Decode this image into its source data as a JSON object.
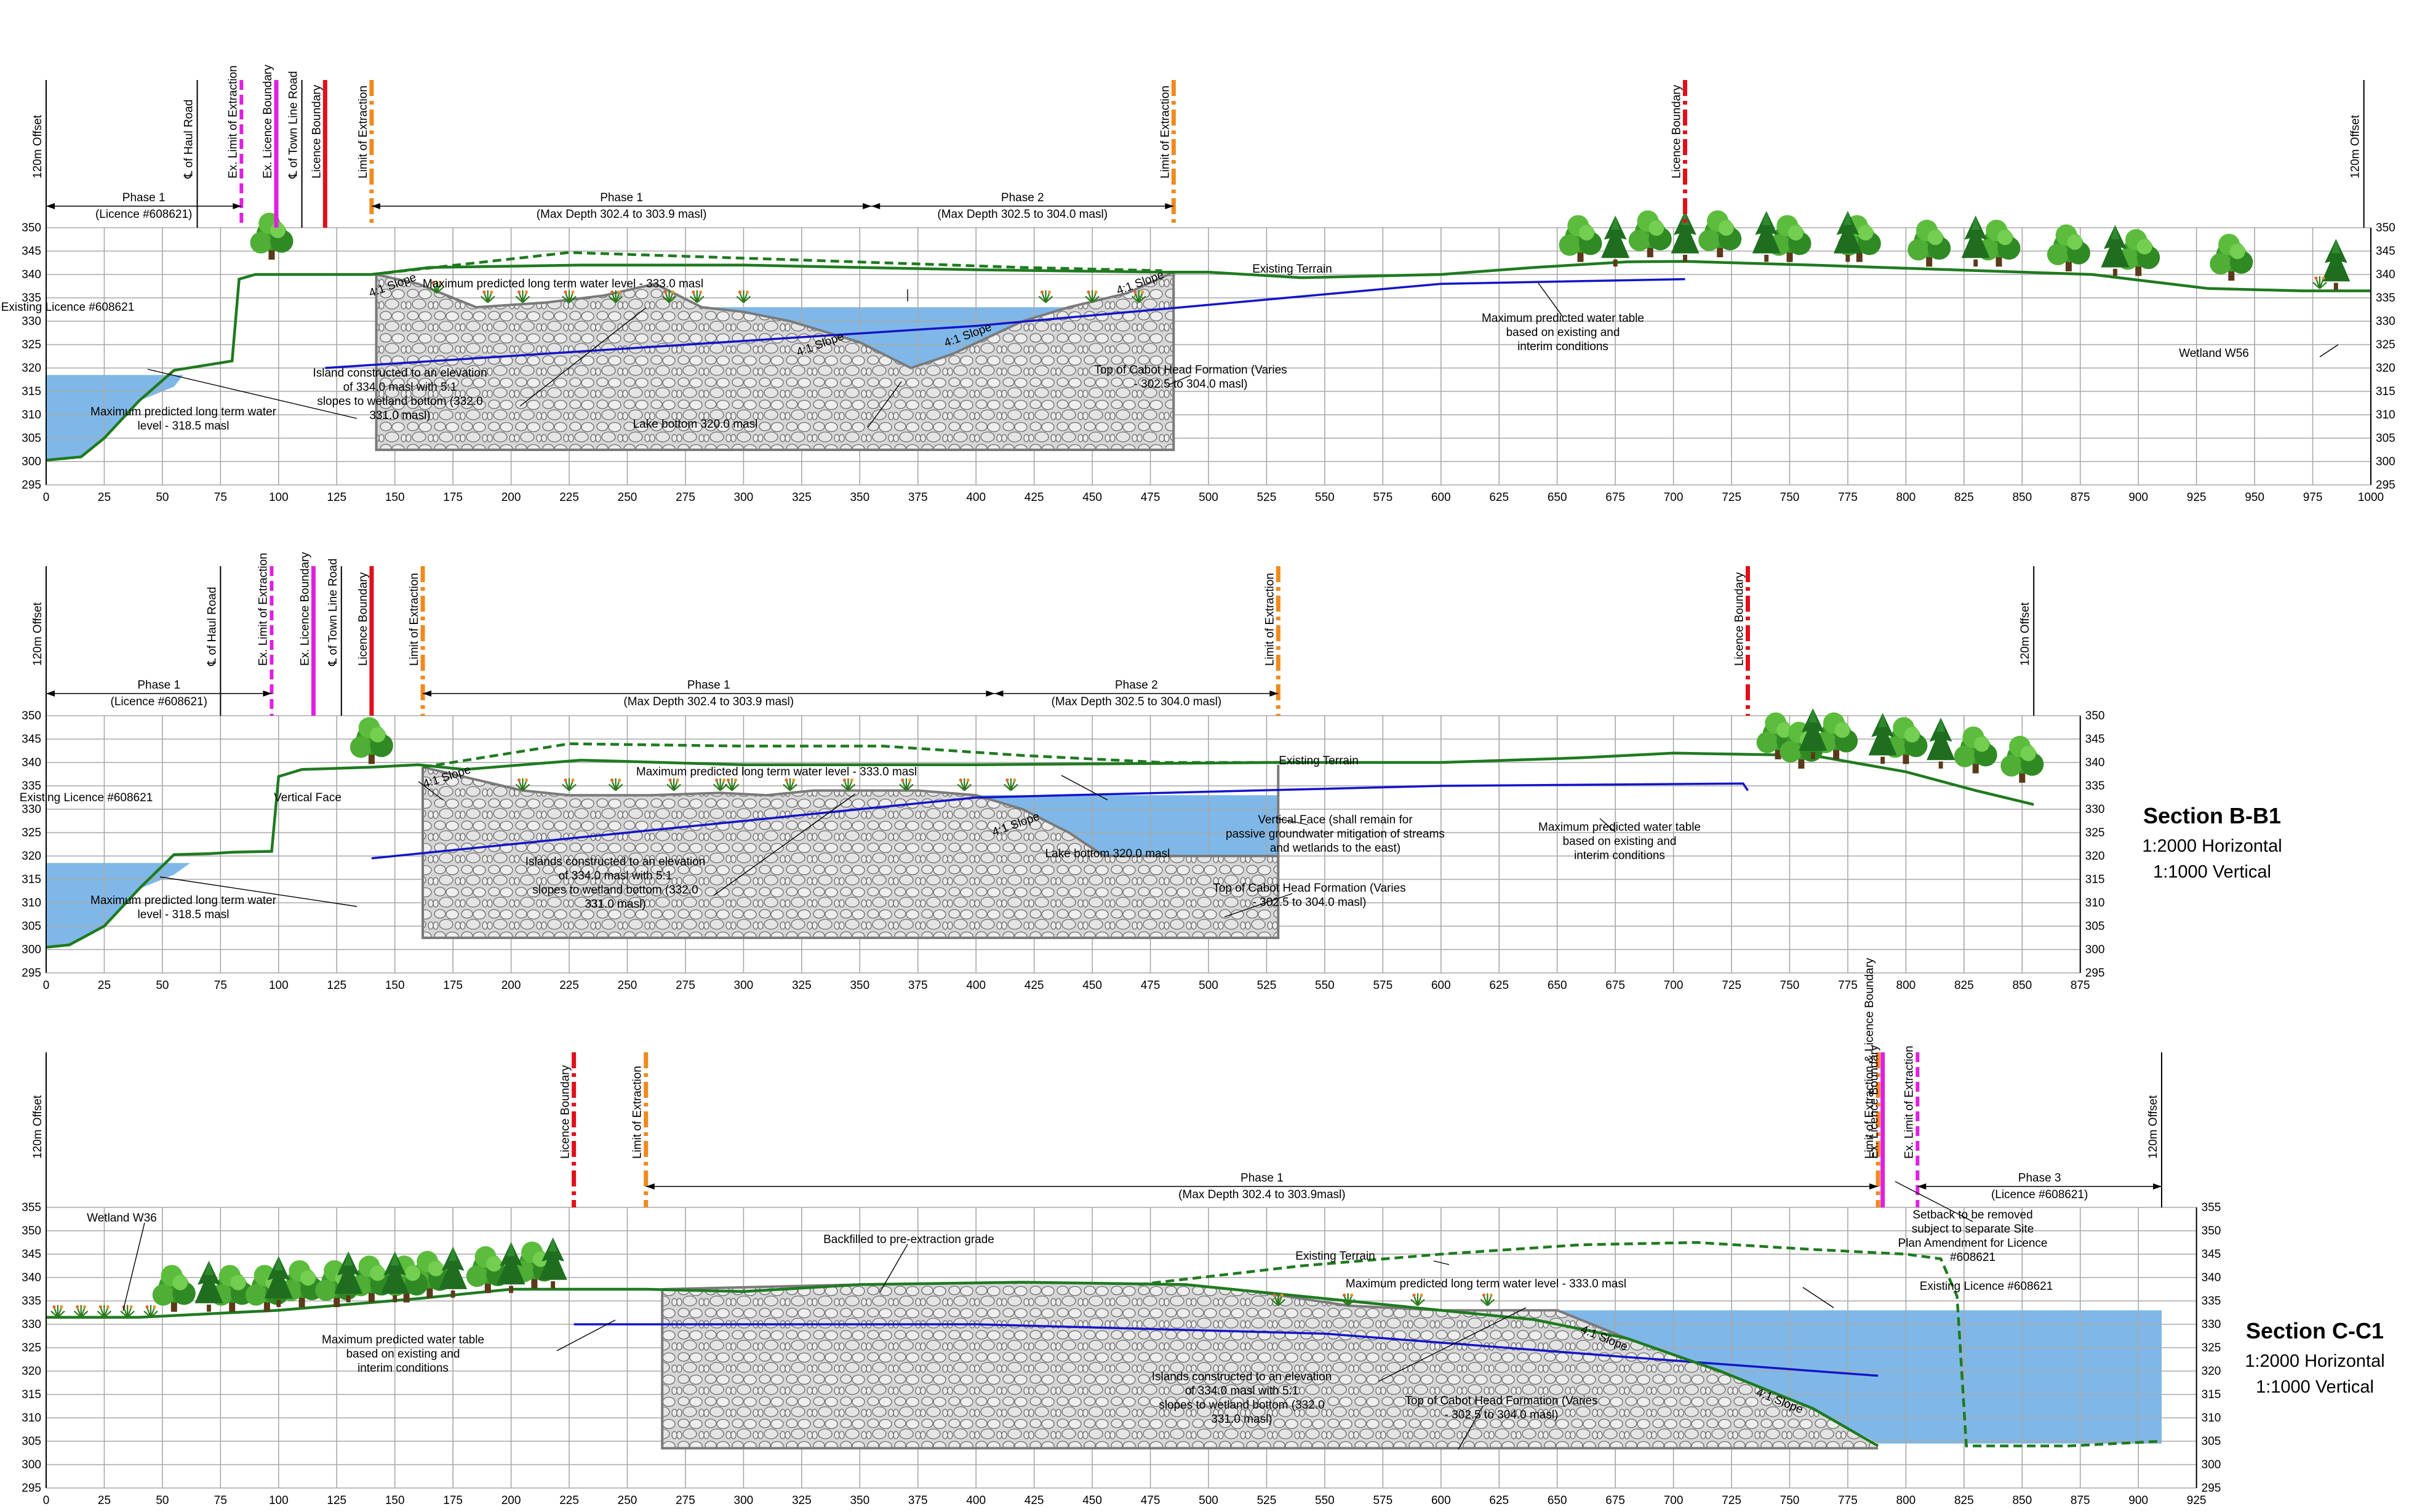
{
  "sections": [
    {
      "id": "A",
      "title": "",
      "scale_h": "",
      "scale_v": "",
      "x_max": 1000,
      "y_min": 295,
      "y_max": 350,
      "x_ticks": [
        0,
        25,
        50,
        75,
        100,
        125,
        150,
        175,
        200,
        225,
        250,
        275,
        300,
        325,
        350,
        375,
        400,
        425,
        450,
        475,
        500,
        525,
        550,
        575,
        600,
        625,
        650,
        675,
        700,
        725,
        750,
        775,
        800,
        825,
        850,
        875,
        900,
        925,
        950,
        975,
        1000
      ],
      "y_ticks": [
        295,
        300,
        305,
        310,
        315,
        320,
        325,
        330,
        335,
        340,
        345,
        350
      ],
      "markers": [
        {
          "label": "120m Offset",
          "x": 0,
          "color": "#000000",
          "style": "thin"
        },
        {
          "label": "℄ of Haul Road",
          "x": 65,
          "color": "#000000",
          "style": "thin"
        },
        {
          "label": "Ex. Limit of Extraction",
          "x": 84,
          "color": "#e020e0",
          "style": "dash"
        },
        {
          "label": "Ex. Licence Boundary",
          "x": 99,
          "color": "#e020e0",
          "style": "solid"
        },
        {
          "label": "℄ of Town Line Road",
          "x": 110,
          "color": "#000000",
          "style": "thin"
        },
        {
          "label": "Licence Boundary",
          "x": 120,
          "color": "#e0101a",
          "style": "solid"
        },
        {
          "label": "Limit of Extraction",
          "x": 140,
          "color": "#f08a1c",
          "style": "dashdot"
        },
        {
          "label": "Limit of Extraction",
          "x": 485,
          "color": "#f08a1c",
          "style": "dashdot"
        },
        {
          "label": "Licence Boundary",
          "x": 705,
          "color": "#e0101a",
          "style": "dashdot"
        },
        {
          "label": "120m Offset",
          "x": 997,
          "color": "#000000",
          "style": "thin"
        }
      ],
      "phases": [
        {
          "name": "Phase 1",
          "detail": "(Licence #608621)",
          "x1": 0,
          "x2": 84
        },
        {
          "name": "Phase 1",
          "detail": "(Max Depth 302.4 to 303.9 masl)",
          "x1": 140,
          "x2": 355
        },
        {
          "name": "Phase 2",
          "detail": "(Max Depth 302.5 to 304.0 masl)",
          "x1": 355,
          "x2": 485
        }
      ],
      "notes": [
        {
          "text": "Existing Licence #608621"
        },
        {
          "text": "Maximum predicted long term water level - 333.0 masl"
        },
        {
          "text": "4:1 Slope"
        },
        {
          "text": "4:1 Slope"
        },
        {
          "text": "4:1 Slope"
        },
        {
          "text": "4:1 Slope"
        },
        {
          "text": "Existing Terrain"
        },
        {
          "text": "Maximum predicted water table based on existing and interim conditions"
        },
        {
          "text": "Top of Cabot Head Formation (Varies - 302.5 to 304.0 masl)"
        },
        {
          "text": "Island constructed to an elevation of 334.0 masl with 5:1 slopes to wetland bottom (332.0 331.0 masl)"
        },
        {
          "text": "Lake bottom 320.0 masl"
        },
        {
          "text": "Maximum predicted long term water level - 318.5 masl"
        },
        {
          "text": "Wetland W56"
        }
      ]
    },
    {
      "id": "B",
      "title": "Section B-B1",
      "scale_h": "1:2000 Horizontal",
      "scale_v": "1:1000 Vertical",
      "x_max": 875,
      "y_min": 295,
      "y_max": 350,
      "x_ticks": [
        0,
        25,
        50,
        75,
        100,
        125,
        150,
        175,
        200,
        225,
        250,
        275,
        300,
        325,
        350,
        375,
        400,
        425,
        450,
        475,
        500,
        525,
        550,
        575,
        600,
        625,
        650,
        675,
        700,
        725,
        750,
        775,
        800,
        825,
        850,
        875
      ],
      "y_ticks": [
        295,
        300,
        305,
        310,
        315,
        320,
        325,
        330,
        335,
        340,
        345,
        350
      ],
      "markers": [
        {
          "label": "120m Offset",
          "x": 0,
          "color": "#000000",
          "style": "thin"
        },
        {
          "label": "℄ of Haul Road",
          "x": 75,
          "color": "#000000",
          "style": "thin"
        },
        {
          "label": "Ex. Limit of Extraction",
          "x": 97,
          "color": "#e020e0",
          "style": "dash"
        },
        {
          "label": "Ex. Licence Boundary",
          "x": 115,
          "color": "#e020e0",
          "style": "solid"
        },
        {
          "label": "℄ of Town Line Road",
          "x": 127,
          "color": "#000000",
          "style": "thin"
        },
        {
          "label": "Licence Boundary",
          "x": 140,
          "color": "#e0101a",
          "style": "solid"
        },
        {
          "label": "Limit of Extraction",
          "x": 162,
          "color": "#f08a1c",
          "style": "dashdot"
        },
        {
          "label": "Limit of Extraction",
          "x": 530,
          "color": "#f08a1c",
          "style": "dashdot"
        },
        {
          "label": "Licence Boundary",
          "x": 732,
          "color": "#e0101a",
          "style": "dashdot"
        },
        {
          "label": "120m Offset",
          "x": 855,
          "color": "#000000",
          "style": "thin"
        }
      ],
      "phases": [
        {
          "name": "Phase 1",
          "detail": "(Licence #608621)",
          "x1": 0,
          "x2": 97
        },
        {
          "name": "Phase 1",
          "detail": "(Max Depth 302.4 to 303.9 masl)",
          "x1": 162,
          "x2": 408
        },
        {
          "name": "Phase 2",
          "detail": "(Max Depth 302.5 to 304.0 masl)",
          "x1": 408,
          "x2": 530
        }
      ],
      "notes": [
        {
          "text": "Existing Licence #608621"
        },
        {
          "text": "Vertical Face"
        },
        {
          "text": "4:1 Slope"
        },
        {
          "text": "Maximum predicted long term water level - 333.0 masl"
        },
        {
          "text": "4:1 Slope"
        },
        {
          "text": "Existing Terrain"
        },
        {
          "text": "Lake bottom 320.0 masl"
        },
        {
          "text": "Vertical Face (shall remain for passive groundwater mitigation of streams and wetlands to the east)"
        },
        {
          "text": "Maximum predicted water table based on existing and interim conditions"
        },
        {
          "text": "Top of Cabot Head Formation (Varies - 302.5 to 304.0 masl)"
        },
        {
          "text": "Islands constructed to an elevation of 334.0 masl with 5:1 slopes to wetland bottom (332.0 331.0 masl)"
        },
        {
          "text": "Maximum predicted long term water level - 318.5 masl"
        }
      ]
    },
    {
      "id": "C",
      "title": "Section C-C1",
      "scale_h": "1:2000 Horizontal",
      "scale_v": "1:1000 Vertical",
      "x_max": 925,
      "y_min": 295,
      "y_max": 355,
      "x_ticks": [
        0,
        25,
        50,
        75,
        100,
        125,
        150,
        175,
        200,
        225,
        250,
        275,
        300,
        325,
        350,
        375,
        400,
        425,
        450,
        475,
        500,
        525,
        550,
        575,
        600,
        625,
        650,
        675,
        700,
        725,
        750,
        775,
        800,
        825,
        850,
        875,
        900,
        925
      ],
      "y_ticks": [
        295,
        300,
        305,
        310,
        315,
        320,
        325,
        330,
        335,
        340,
        345,
        350,
        355
      ],
      "markers": [
        {
          "label": "120m Offset",
          "x": 0,
          "color": "#000000",
          "style": "thin"
        },
        {
          "label": "Licence Boundary",
          "x": 227,
          "color": "#e0101a",
          "style": "dashdot"
        },
        {
          "label": "Limit of Extraction",
          "x": 258,
          "color": "#f08a1c",
          "style": "dashdot"
        },
        {
          "label": "Limit of Extraction & Licence Boundary",
          "x": 788,
          "color": "#f08a1c",
          "style": "dashdot"
        },
        {
          "label": "Ex. Licence Boundary",
          "x": 790,
          "color": "#e020e0",
          "style": "solid"
        },
        {
          "label": "Ex. Limit of Extraction",
          "x": 805,
          "color": "#e020e0",
          "style": "dash"
        },
        {
          "label": "120m Offset",
          "x": 910,
          "color": "#000000",
          "style": "thin"
        }
      ],
      "phases": [
        {
          "name": "Phase 1",
          "detail": "(Max Depth 302.4 to 303.9masl)",
          "x1": 258,
          "x2": 788
        },
        {
          "name": "Phase 3",
          "detail": "(Licence #608621)",
          "x1": 805,
          "x2": 910
        }
      ],
      "notes": [
        {
          "text": "Wetland W36"
        },
        {
          "text": "Backfilled to pre-extraction grade"
        },
        {
          "text": "Existing Terrain"
        },
        {
          "text": "Maximum predicted long term water level - 333.0 masl"
        },
        {
          "text": "Setback to be removed subject to separate Site Plan Amendment for Licence #608621"
        },
        {
          "text": "Existing Licence #608621"
        },
        {
          "text": "Maximum predicted water table based on existing and interim conditions"
        },
        {
          "text": "4:1 Slope"
        },
        {
          "text": "4:1 Slope"
        },
        {
          "text": "Islands constructed to an elevation of 334.0 masl with 5:1 slopes to wetland bottom (332.0 331.0 masl)"
        },
        {
          "text": "Top of Cabot Head Formation (Varies - 302.5 to 304.0 masl)"
        }
      ]
    }
  ],
  "colors": {
    "grid": "#a8a8a8",
    "water": "#7fb8e8",
    "terrain": "#1f7a1f",
    "watertable": "#1414c8",
    "rock": "#d4d4d4",
    "rock_edge": "#7a7a7a"
  }
}
